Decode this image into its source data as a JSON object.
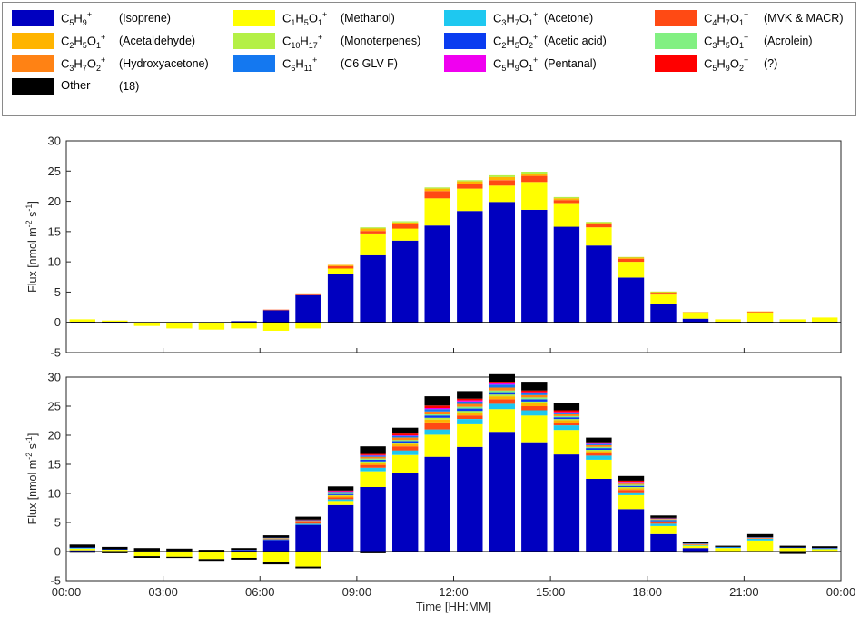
{
  "legend": [
    {
      "id": "isoprene",
      "base": "C5H9",
      "sub": [
        "5",
        "9"
      ],
      "atoms": [
        "C",
        "H"
      ],
      "name": "(Isoprene)",
      "color": "#0000c0"
    },
    {
      "id": "methanol",
      "base": "C1H5O1",
      "sub": [
        "1",
        "5",
        "1"
      ],
      "atoms": [
        "C",
        "H",
        "O"
      ],
      "name": "(Methanol)",
      "color": "#ffff00"
    },
    {
      "id": "acetone",
      "base": "C3H7O1",
      "sub": [
        "3",
        "7",
        "1"
      ],
      "atoms": [
        "C",
        "H",
        "O"
      ],
      "name": "(Acetone)",
      "color": "#1ec8f0"
    },
    {
      "id": "mvk",
      "base": "C4H7O1",
      "sub": [
        "4",
        "7",
        "1"
      ],
      "atoms": [
        "C",
        "H",
        "O"
      ],
      "name": "(MVK & MACR)",
      "color": "#ff4a14"
    },
    {
      "id": "acetald",
      "base": "C2H5O1",
      "sub": [
        "2",
        "5",
        "1"
      ],
      "atoms": [
        "C",
        "H",
        "O"
      ],
      "name": "(Acetaldehyde)",
      "color": "#ffb400"
    },
    {
      "id": "monoterp",
      "base": "C10H17",
      "sub": [
        "10",
        "17"
      ],
      "atoms": [
        "C",
        "H"
      ],
      "name": "(Monoterpenes)",
      "color": "#b4f046"
    },
    {
      "id": "acetic",
      "base": "C2H5O2",
      "sub": [
        "2",
        "5",
        "2"
      ],
      "atoms": [
        "C",
        "H",
        "O"
      ],
      "name": "(Acetic acid)",
      "color": "#0a3cf0"
    },
    {
      "id": "acrolein",
      "base": "C3H5O1",
      "sub": [
        "3",
        "5",
        "1"
      ],
      "atoms": [
        "C",
        "H",
        "O"
      ],
      "name": "(Acrolein)",
      "color": "#82f082"
    },
    {
      "id": "hydroxyac",
      "base": "C3H7O2",
      "sub": [
        "3",
        "7",
        "2"
      ],
      "atoms": [
        "C",
        "H",
        "O"
      ],
      "name": "(Hydroxyacetone)",
      "color": "#ff8214"
    },
    {
      "id": "glv",
      "base": "C6H11",
      "sub": [
        "6",
        "11"
      ],
      "atoms": [
        "C",
        "H"
      ],
      "name": "(C6 GLV F)",
      "color": "#1478f0"
    },
    {
      "id": "pentanal",
      "base": "C5H9O1",
      "sub": [
        "5",
        "9",
        "1"
      ],
      "atoms": [
        "C",
        "H",
        "O"
      ],
      "name": "(Pentanal)",
      "color": "#f000f0"
    },
    {
      "id": "unknown",
      "base": "C5H9O2",
      "sub": [
        "5",
        "9",
        "2"
      ],
      "atoms": [
        "C",
        "H",
        "O"
      ],
      "name": "(?)",
      "color": "#ff0000"
    },
    {
      "id": "other",
      "base": "Other",
      "sub": [],
      "atoms": [],
      "name": "(18)",
      "color": "#000000"
    }
  ],
  "chart_data": [
    {
      "type": "bar",
      "stacked": true,
      "ylabel": "Flux [nmol m-2 s-1]",
      "ylim": [
        -5,
        30
      ],
      "yticks": [
        -5,
        0,
        5,
        10,
        15,
        20,
        25,
        30
      ],
      "x_hours": [
        0.75,
        2.25,
        3.75,
        5.25,
        6.75,
        8.25,
        9.75,
        11.25,
        12.75,
        14.25,
        15.75,
        17.25,
        18.75,
        20.25,
        21.75,
        23.25,
        0.75,
        2.25,
        3.75,
        5.25,
        6.75,
        8.25,
        9.75,
        11.25
      ],
      "x": [
        "00:45",
        "01:45",
        "02:45",
        "03:45",
        "04:45",
        "05:45",
        "06:45",
        "07:45",
        "08:45",
        "09:45",
        "10:45",
        "11:45",
        "12:45",
        "13:45",
        "14:45",
        "15:45",
        "16:45",
        "17:45",
        "18:45",
        "19:45",
        "20:45",
        "21:45",
        "22:45",
        "23:45"
      ],
      "series": [
        {
          "name": "C5H9+ (Isoprene)",
          "key": "isoprene",
          "values": [
            0.1,
            0.1,
            0,
            0,
            0,
            0.2,
            2.0,
            4.5,
            8.0,
            11.1,
            13.5,
            16.0,
            18.4,
            19.9,
            18.6,
            15.8,
            12.7,
            7.4,
            3.1,
            0.6,
            0.1,
            0.1,
            0.1,
            0.1
          ]
        },
        {
          "name": "C1H5O1+ (Methanol)",
          "key": "methanol",
          "values": [
            0.4,
            0.2,
            -0.6,
            -1.0,
            -1.2,
            -1.0,
            -1.4,
            -1.0,
            0.9,
            3.6,
            2.0,
            4.5,
            3.7,
            2.7,
            4.6,
            3.9,
            3.0,
            2.6,
            1.5,
            0.9,
            0.4,
            1.5,
            0.4,
            0.7
          ]
        },
        {
          "name": "C4H7O1+ (MVK & MACR)",
          "key": "mvk",
          "values": [
            0,
            0,
            0,
            0,
            0,
            0,
            0.1,
            0.2,
            0.4,
            0.4,
            0.7,
            1.2,
            0.8,
            0.9,
            1.0,
            0.5,
            0.5,
            0.5,
            0.3,
            0.1,
            0,
            0.1,
            0,
            0
          ]
        },
        {
          "name": "C2H5O1+ (Acetaldehyde)",
          "key": "acetald",
          "values": [
            0,
            0,
            0,
            0,
            0,
            0,
            0,
            0.1,
            0.2,
            0.4,
            0.3,
            0.4,
            0.4,
            0.5,
            0.4,
            0.3,
            0.2,
            0.2,
            0.1,
            0.1,
            0,
            0.1,
            0,
            0
          ]
        },
        {
          "name": "C10H17+ (Monoterpenes)",
          "key": "monoterp",
          "values": [
            0,
            0,
            0,
            0,
            0,
            0,
            0,
            0,
            0,
            0.2,
            0.2,
            0.2,
            0.2,
            0.3,
            0.3,
            0.2,
            0.2,
            0.1,
            0.1,
            0,
            0,
            0,
            0,
            0
          ]
        }
      ]
    },
    {
      "type": "bar",
      "stacked": true,
      "xlabel": "Time [HH:MM]",
      "ylabel": "Flux [nmol m-2 s-1]",
      "ylim": [
        -5,
        30
      ],
      "yticks": [
        -5,
        0,
        5,
        10,
        15,
        20,
        25,
        30
      ],
      "xticks": [
        "00:00",
        "03:00",
        "06:00",
        "09:00",
        "12:00",
        "15:00",
        "18:00",
        "21:00",
        "00:00"
      ],
      "x": [
        "00:45",
        "01:45",
        "02:45",
        "03:45",
        "04:45",
        "05:45",
        "06:45",
        "07:45",
        "08:45",
        "09:45",
        "10:45",
        "11:45",
        "12:45",
        "13:45",
        "14:45",
        "15:45",
        "16:45",
        "17:45",
        "18:45",
        "19:45",
        "20:45",
        "21:45",
        "22:45",
        "23:45"
      ],
      "series": [
        {
          "name": "C5H9+ (Isoprene)",
          "key": "isoprene",
          "values": [
            0.2,
            0.1,
            0,
            0,
            0,
            0.2,
            2.0,
            4.6,
            8.0,
            11.1,
            13.6,
            16.3,
            18.0,
            20.6,
            18.8,
            16.7,
            12.5,
            7.3,
            3.0,
            0.6,
            0.1,
            0.1,
            0.1,
            0.1
          ]
        },
        {
          "name": "C1H5O1+ (Methanol)",
          "key": "methanol",
          "values": [
            0.3,
            0.2,
            -0.8,
            -0.9,
            -1.3,
            -1.1,
            -1.8,
            -2.6,
            0.7,
            2.7,
            3.0,
            3.8,
            3.9,
            3.9,
            4.6,
            4.2,
            3.3,
            2.4,
            1.4,
            0.4,
            0.5,
            1.8,
            0.5,
            0.3
          ]
        },
        {
          "name": "C3H7O1+ (Acetone)",
          "key": "acetone",
          "values": [
            0.1,
            0,
            0,
            0,
            0,
            0,
            0.1,
            0.2,
            0.3,
            0.6,
            0.8,
            0.9,
            0.9,
            0.9,
            0.9,
            0.8,
            0.7,
            0.5,
            0.4,
            0.1,
            0.1,
            0.3,
            0,
            0.1
          ]
        },
        {
          "name": "C4H7O1+ (MVK & MACR)",
          "key": "mvk",
          "values": [
            0,
            0,
            0,
            0,
            0,
            0,
            0.1,
            0.2,
            0.3,
            0.5,
            0.7,
            1.2,
            0.6,
            0.8,
            0.7,
            0.5,
            0.4,
            0.4,
            0.2,
            0.1,
            0,
            0.1,
            0,
            0
          ]
        },
        {
          "name": "C2H5O1+ (Acetaldehyde)",
          "key": "acetald",
          "values": [
            0,
            0,
            0,
            0,
            0,
            0,
            0.1,
            0.1,
            0.3,
            0.4,
            0.4,
            0.5,
            0.5,
            0.5,
            0.5,
            0.4,
            0.4,
            0.3,
            0.1,
            0.1,
            0,
            0.1,
            0,
            0
          ]
        },
        {
          "name": "C10H17+ (Monoterpenes)",
          "key": "monoterp",
          "values": [
            0,
            0,
            0,
            0,
            0,
            0,
            0,
            0,
            0.1,
            0.2,
            0.2,
            0.3,
            0.3,
            0.3,
            0.3,
            0.2,
            0.2,
            0.2,
            0.1,
            0,
            0,
            0,
            0,
            0
          ]
        },
        {
          "name": "C2H5O2+ (Acetic acid)",
          "key": "acetic",
          "values": [
            0.1,
            0.1,
            0.1,
            0.1,
            0,
            0.1,
            0.1,
            0.1,
            0.2,
            0.3,
            0.3,
            0.4,
            0.4,
            0.4,
            0.4,
            0.3,
            0.3,
            0.2,
            0.2,
            0.1,
            0.1,
            0.1,
            0.1,
            0.1
          ]
        },
        {
          "name": "C3H5O1+ (Acrolein)",
          "key": "acrolein",
          "values": [
            0,
            0,
            0,
            0,
            0,
            0,
            0,
            0,
            0.1,
            0.2,
            0.2,
            0.2,
            0.3,
            0.3,
            0.3,
            0.2,
            0.2,
            0.2,
            0.1,
            0,
            0,
            0,
            0,
            0
          ]
        },
        {
          "name": "C3H7O2+ (Hydroxyacetone)",
          "key": "hydroxyac",
          "values": [
            0,
            0,
            0,
            0,
            0,
            0,
            0,
            0.1,
            0.2,
            0.3,
            0.4,
            0.5,
            0.5,
            0.5,
            0.4,
            0.3,
            0.3,
            0.2,
            0.1,
            0,
            0,
            0,
            0,
            0
          ]
        },
        {
          "name": "C6H11+ (C6 GLV F)",
          "key": "glv",
          "values": [
            0,
            0,
            0,
            0,
            0,
            0,
            0,
            0.1,
            0.1,
            0.2,
            0.3,
            0.4,
            0.4,
            0.5,
            0.3,
            0.3,
            0.2,
            0.2,
            0.1,
            0,
            0,
            0,
            0,
            0
          ]
        },
        {
          "name": "C5H9O1+ (Pentanal)",
          "key": "pentanal",
          "values": [
            0,
            0,
            0,
            0,
            0,
            0,
            0,
            0,
            0.1,
            0.1,
            0.1,
            0.2,
            0.2,
            0.2,
            0.2,
            0.1,
            0.1,
            0.1,
            0,
            0,
            0,
            0,
            0,
            0
          ]
        },
        {
          "name": "C5H9O2+ (?)",
          "key": "unknown",
          "values": [
            0,
            0,
            0,
            0,
            0,
            0,
            0,
            0.1,
            0.1,
            0.2,
            0.3,
            0.4,
            0.3,
            0.3,
            0.3,
            0.3,
            0.2,
            0.2,
            0.1,
            0,
            0,
            0,
            0,
            0
          ]
        },
        {
          "name": "Other (18)",
          "key": "other",
          "values": [
            0.5,
            0.4,
            0.5,
            0.4,
            0.3,
            0.3,
            0.4,
            0.5,
            0.7,
            1.3,
            1.0,
            1.6,
            1.3,
            1.3,
            1.5,
            1.3,
            0.8,
            0.8,
            0.4,
            0.3,
            0.2,
            0.5,
            0.3,
            0.3
          ]
        }
      ],
      "negative_other": [
        -0.2,
        -0.3,
        -0.3,
        -0.2,
        -0.3,
        -0.3,
        -0.4,
        -0.3,
        0,
        -0.3,
        0,
        0,
        0,
        0,
        0,
        0,
        0,
        0,
        0,
        -0.2,
        -0.1,
        0,
        -0.4,
        -0.1
      ]
    }
  ]
}
